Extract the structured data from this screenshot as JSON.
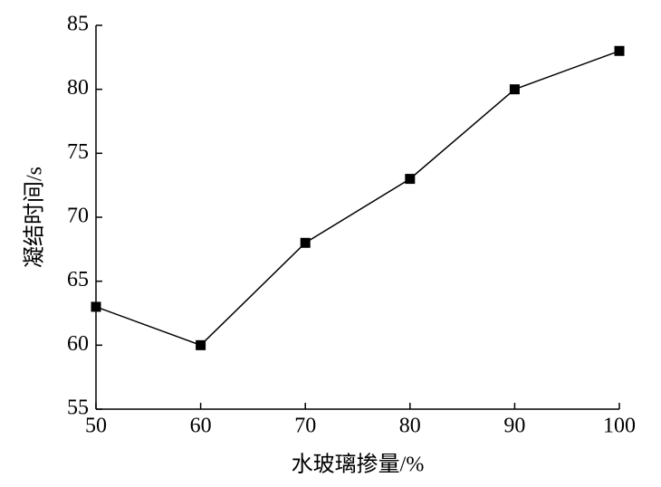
{
  "chart_data": {
    "type": "line",
    "x_label": "水玻璃掺量/%",
    "y_label": "凝结时间/s",
    "x": [
      50,
      60,
      70,
      80,
      90,
      100
    ],
    "series": [
      {
        "color": "#000000",
        "values": [
          63,
          60,
          68,
          73,
          80,
          83
        ]
      }
    ],
    "xlim": [
      50,
      100
    ],
    "xticks": [
      50,
      60,
      70,
      80,
      90,
      100
    ],
    "ylim": [
      55,
      85
    ],
    "yticks": [
      55,
      60,
      65,
      70,
      75,
      80,
      85
    ],
    "grid": false
  }
}
